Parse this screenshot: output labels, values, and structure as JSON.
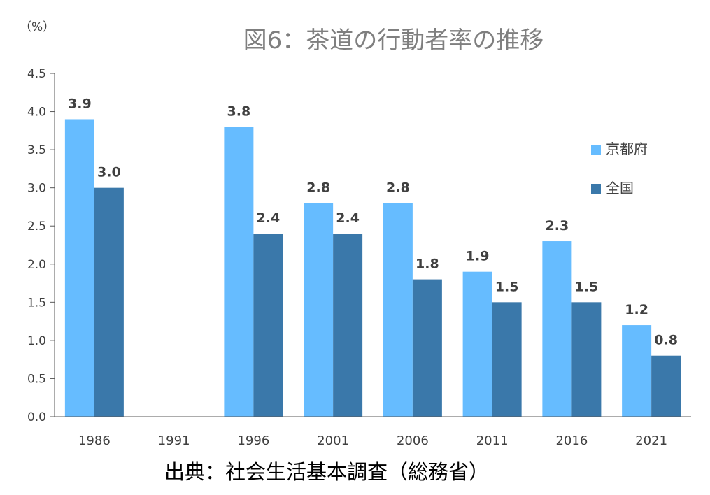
{
  "chart_data": {
    "type": "bar",
    "title": "図6：茶道の行動者率の推移",
    "unit_label": "（%）",
    "categories": [
      "1986",
      "1991",
      "1996",
      "2001",
      "2006",
      "2011",
      "2016",
      "2021"
    ],
    "series": [
      {
        "name": "京都府",
        "color": "#66bcff",
        "values": [
          3.9,
          null,
          3.8,
          2.8,
          2.8,
          1.9,
          2.3,
          1.2
        ]
      },
      {
        "name": "全国",
        "color": "#3a78aa",
        "values": [
          3.0,
          null,
          2.4,
          2.4,
          1.8,
          1.5,
          1.5,
          0.8
        ]
      }
    ],
    "ylim": [
      0,
      4.5
    ],
    "yticks": [
      "0.0",
      "0.5",
      "1.0",
      "1.5",
      "2.0",
      "2.5",
      "3.0",
      "3.5",
      "4.0",
      "4.5"
    ],
    "ytick_values": [
      0,
      0.5,
      1.0,
      1.5,
      2.0,
      2.5,
      3.0,
      3.5,
      4.0,
      4.5
    ],
    "data_label_decimals": 1,
    "grid": false,
    "legend_position": "right",
    "source": "出典：社会生活基本調査（総務省）"
  }
}
